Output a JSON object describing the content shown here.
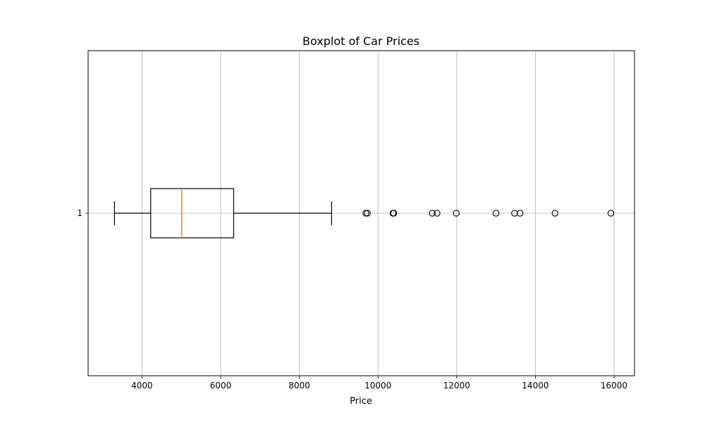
{
  "chart_data": {
    "type": "boxplot",
    "orientation": "horizontal",
    "title": "Boxplot of Car Prices",
    "xlabel": "Price",
    "ylabel": "",
    "xlim": [
      2630,
      16520
    ],
    "xticks": [
      4000,
      6000,
      8000,
      10000,
      12000,
      14000,
      16000
    ],
    "xtick_labels": [
      "4000",
      "6000",
      "8000",
      "10000",
      "12000",
      "14000",
      "16000"
    ],
    "yticks": [
      1
    ],
    "ytick_labels": [
      "1"
    ],
    "grid": true,
    "box": {
      "position": 1,
      "whisker_low": 3300,
      "q1": 4220,
      "median": 5010,
      "q3": 6330,
      "whisker_high": 8820
    },
    "outliers": [
      9690,
      9730,
      10380,
      10400,
      11380,
      11500,
      11990,
      13000,
      13470,
      13610,
      14500,
      15920
    ],
    "colors": {
      "box": "#000000",
      "median": "#ff7f0e",
      "grid": "#b0b0b0",
      "outlier_edge": "#000000"
    }
  }
}
